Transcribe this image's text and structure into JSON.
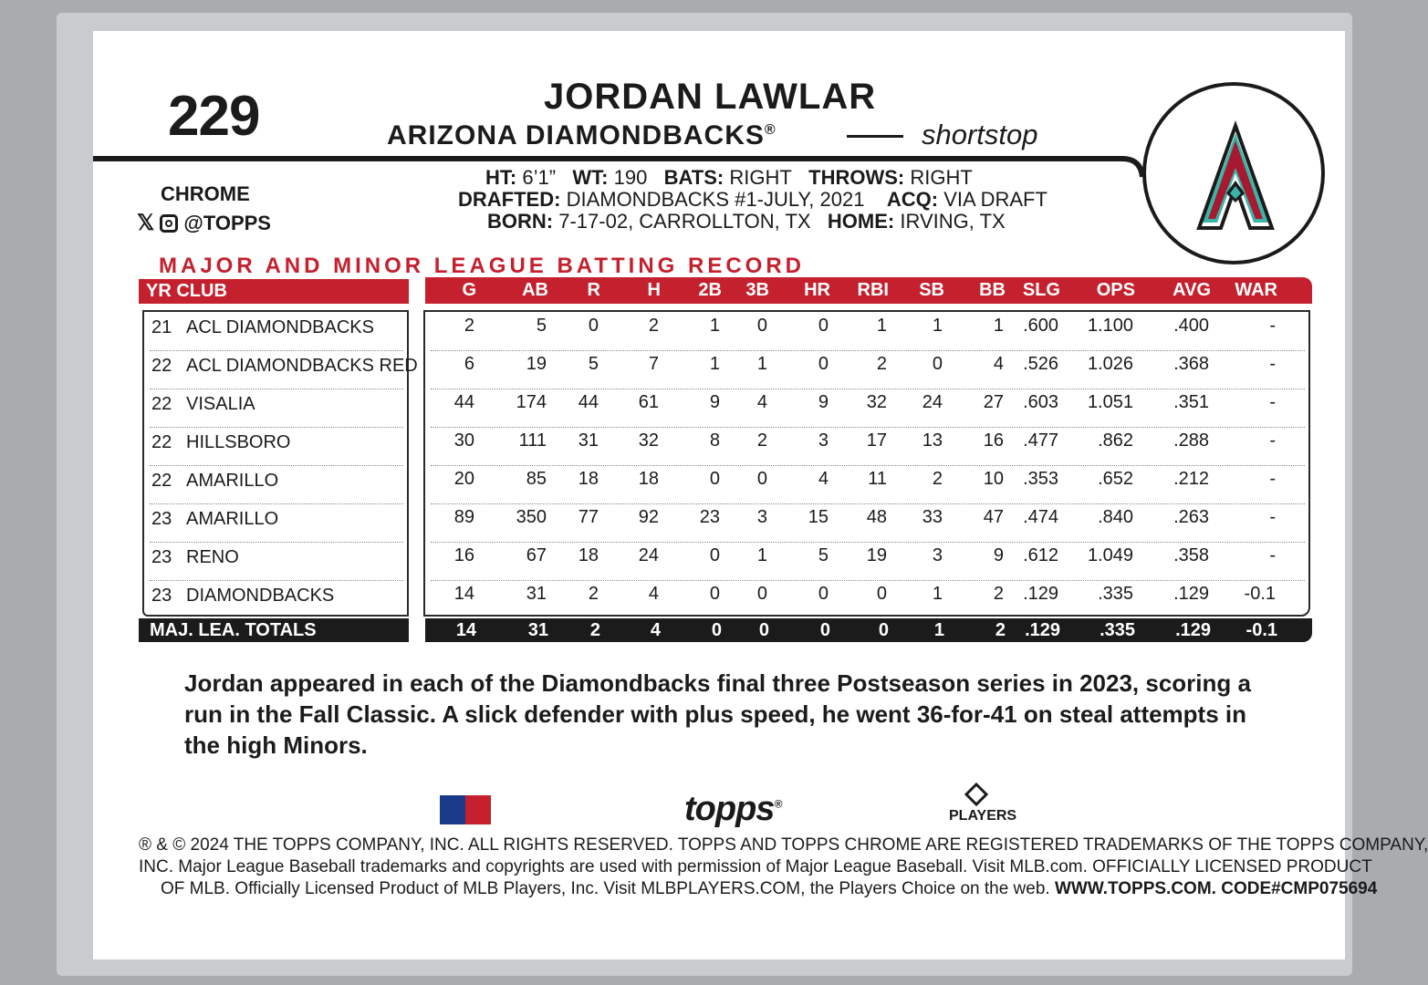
{
  "card": {
    "number": "229",
    "player_name": "JORDAN LAWLAR",
    "team": "ARIZONA DIAMONDBACKS",
    "team_mark": "®",
    "position": "shortstop",
    "brand": "CHROME",
    "social_handle": "@TOPPS",
    "colors": {
      "accent": "#c5202e",
      "ink": "#1b1b1b",
      "logo_teal": "#3bb4a8"
    }
  },
  "bio": {
    "ht_label": "HT:",
    "ht": "6’1”",
    "wt_label": "WT:",
    "wt": "190",
    "bats_label": "BATS:",
    "bats": "RIGHT",
    "throws_label": "THROWS:",
    "throws": "RIGHT",
    "drafted_label": "DRAFTED:",
    "drafted": "DIAMONDBACKS #1-JULY, 2021",
    "acq_label": "ACQ:",
    "acq": "VIA DRAFT",
    "born_label": "BORN:",
    "born": "7-17-02, CARROLLTON, TX",
    "home_label": "HOME:",
    "home": "IRVING, TX"
  },
  "record": {
    "title": "MAJOR AND MINOR LEAGUE BATTING RECORD",
    "left_header": "YR CLUB",
    "columns": [
      "G",
      "AB",
      "R",
      "H",
      "2B",
      "3B",
      "HR",
      "RBI",
      "SB",
      "BB",
      "SLG",
      "OPS",
      "AVG",
      "WAR"
    ],
    "rows": [
      {
        "yr": "21",
        "club": "ACL DIAMONDBACKS",
        "stats": [
          "2",
          "5",
          "0",
          "2",
          "1",
          "0",
          "0",
          "1",
          "1",
          "1",
          ".600",
          "1.100",
          ".400",
          "-"
        ]
      },
      {
        "yr": "22",
        "club": "ACL DIAMONDBACKS RED",
        "stats": [
          "6",
          "19",
          "5",
          "7",
          "1",
          "1",
          "0",
          "2",
          "0",
          "4",
          ".526",
          "1.026",
          ".368",
          "-"
        ]
      },
      {
        "yr": "22",
        "club": "VISALIA",
        "stats": [
          "44",
          "174",
          "44",
          "61",
          "9",
          "4",
          "9",
          "32",
          "24",
          "27",
          ".603",
          "1.051",
          ".351",
          "-"
        ]
      },
      {
        "yr": "22",
        "club": "HILLSBORO",
        "stats": [
          "30",
          "111",
          "31",
          "32",
          "8",
          "2",
          "3",
          "17",
          "13",
          "16",
          ".477",
          ".862",
          ".288",
          "-"
        ]
      },
      {
        "yr": "22",
        "club": "AMARILLO",
        "stats": [
          "20",
          "85",
          "18",
          "18",
          "0",
          "0",
          "4",
          "11",
          "2",
          "10",
          ".353",
          ".652",
          ".212",
          "-"
        ]
      },
      {
        "yr": "23",
        "club": "AMARILLO",
        "stats": [
          "89",
          "350",
          "77",
          "92",
          "23",
          "3",
          "15",
          "48",
          "33",
          "47",
          ".474",
          ".840",
          ".263",
          "-"
        ]
      },
      {
        "yr": "23",
        "club": "RENO",
        "stats": [
          "16",
          "67",
          "18",
          "24",
          "0",
          "1",
          "5",
          "19",
          "3",
          "9",
          ".612",
          "1.049",
          ".358",
          "-"
        ]
      },
      {
        "yr": "23",
        "club": "DIAMONDBACKS",
        "stats": [
          "14",
          "31",
          "2",
          "4",
          "0",
          "0",
          "0",
          "0",
          "1",
          "2",
          ".129",
          ".335",
          ".129",
          "-0.1"
        ]
      }
    ],
    "totals_label": "MAJ. LEA. TOTALS",
    "totals": [
      "14",
      "31",
      "2",
      "4",
      "0",
      "0",
      "0",
      "0",
      "1",
      "2",
      ".129",
      ".335",
      ".129",
      "-0.1"
    ]
  },
  "blurb": "Jordan appeared in each of the Diamondbacks final three Postseason series in 2023, scoring a run in the Fall Classic. A slick defender with plus speed, he went 36-for-41 on steal attempts in the high Minors.",
  "logos": {
    "topps": "topps",
    "topps_mark": "®",
    "players": "PLAYERS"
  },
  "legal": {
    "line1": "® & © 2024 THE TOPPS COMPANY, INC.  ALL RIGHTS RESERVED. TOPPS AND TOPPS CHROME ARE REGISTERED TRADEMARKS OF THE TOPPS COMPANY,",
    "line2": "INC.  Major League Baseball trademarks and copyrights are used with permission of Major League Baseball. Visit MLB.com. OFFICIALLY LICENSED PRODUCT",
    "line3_a": "OF MLB. Officially Licensed Product of MLB Players, Inc. Visit MLBPLAYERS.COM, the Players Choice on the web. ",
    "line3_b": "WWW.TOPPS.COM. CODE#CMP075694"
  }
}
